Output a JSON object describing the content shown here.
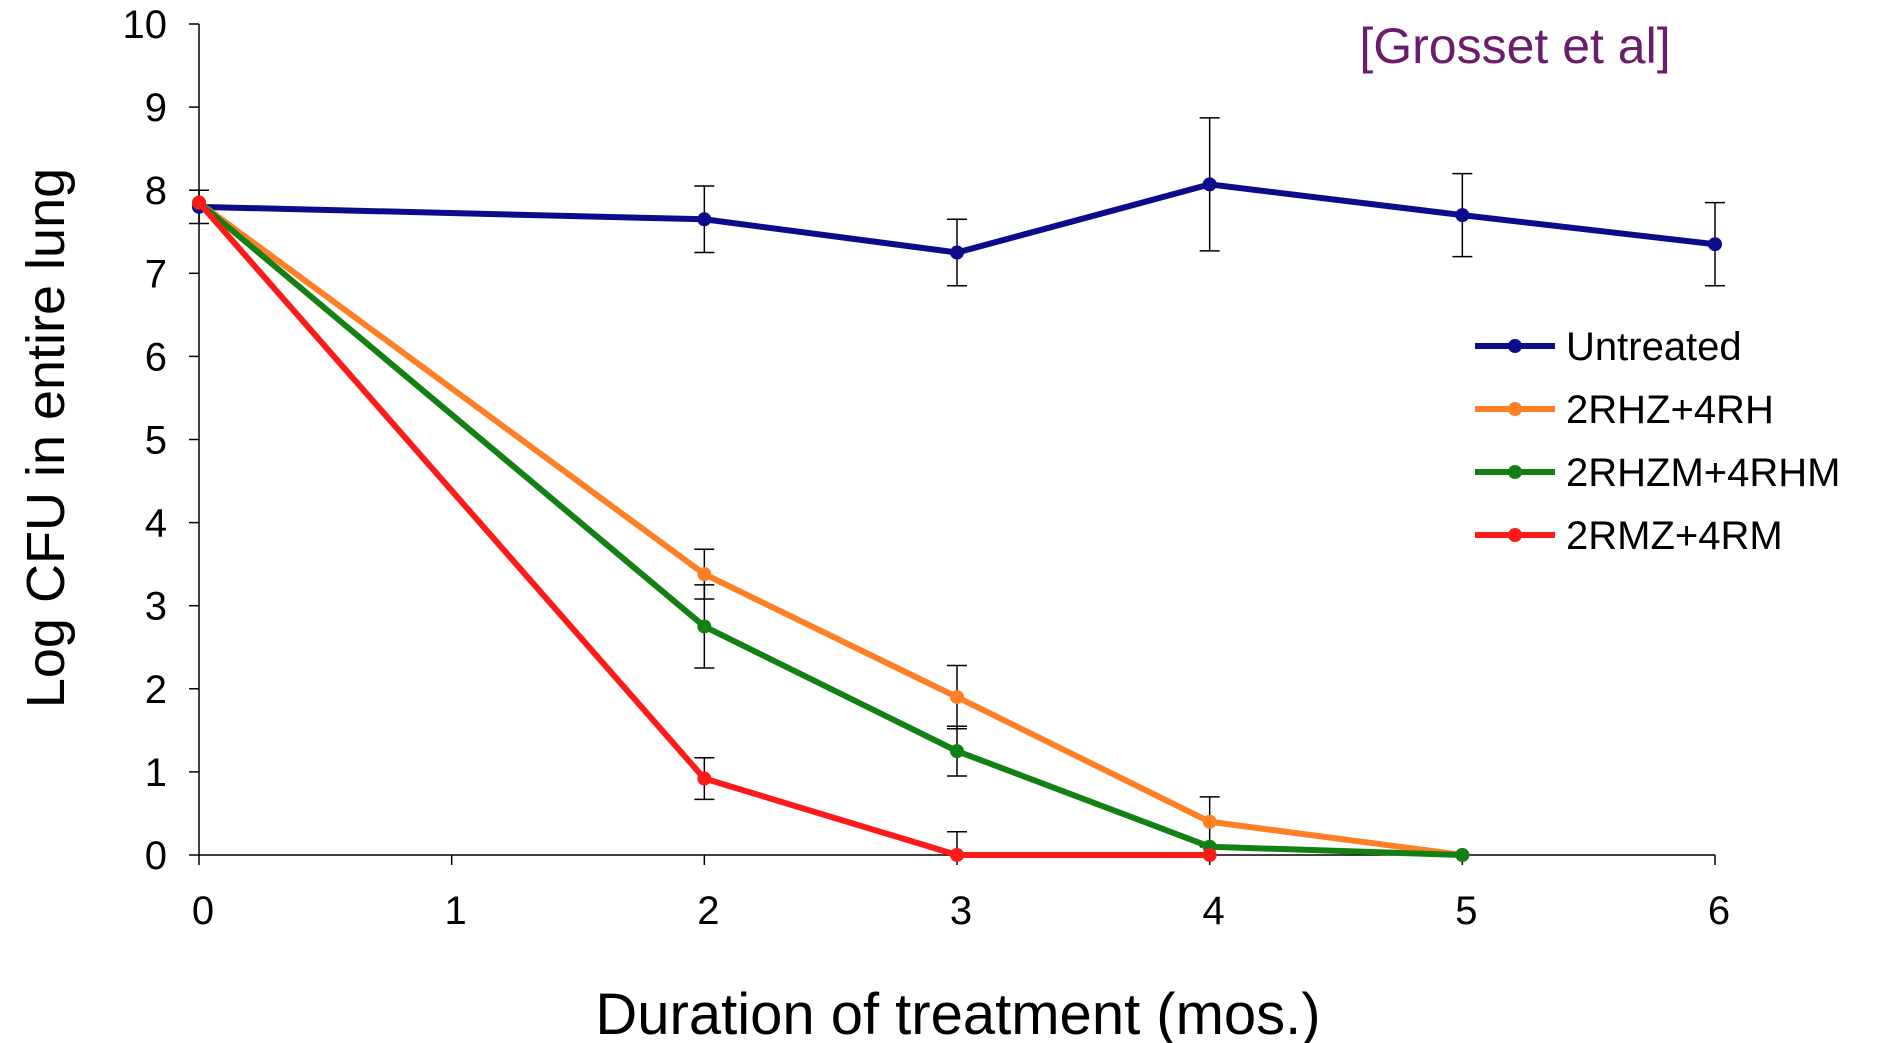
{
  "chart_data": {
    "type": "line",
    "xlabel": "Duration of treatment (mos.)",
    "ylabel": "Log CFU in entire lung",
    "xlim": [
      0,
      6
    ],
    "ylim": [
      0,
      10
    ],
    "x_ticks": [
      0,
      1,
      2,
      3,
      4,
      5,
      6
    ],
    "y_ticks": [
      0,
      1,
      2,
      3,
      4,
      5,
      6,
      7,
      8,
      9,
      10
    ],
    "grid": false,
    "legend_position": "right",
    "annotation": "[Grosset et al]",
    "annotation_color": "#6B1D6B",
    "series": [
      {
        "name": "Untreated",
        "color": "#0B0B8C",
        "points": [
          {
            "x": 0,
            "y": 7.8,
            "err": 0.2
          },
          {
            "x": 2,
            "y": 7.65,
            "err": 0.4
          },
          {
            "x": 3,
            "y": 7.25,
            "err": 0.4
          },
          {
            "x": 4,
            "y": 8.07,
            "err": 0.8
          },
          {
            "x": 5,
            "y": 7.7,
            "err": 0.5
          },
          {
            "x": 6,
            "y": 7.35,
            "err": 0.5
          }
        ]
      },
      {
        "name": "2RHZ+4RH",
        "color": "#FF7F27",
        "points": [
          {
            "x": 0,
            "y": 7.85,
            "err": 0
          },
          {
            "x": 2,
            "y": 3.38,
            "err": 0.3
          },
          {
            "x": 3,
            "y": 1.9,
            "err": 0.38
          },
          {
            "x": 4,
            "y": 0.4,
            "err": 0.3
          },
          {
            "x": 5,
            "y": 0,
            "err": 0
          }
        ]
      },
      {
        "name": "2RHZM+4RHM",
        "color": "#138013",
        "points": [
          {
            "x": 0,
            "y": 7.85,
            "err": 0
          },
          {
            "x": 2,
            "y": 2.75,
            "err": 0.5
          },
          {
            "x": 3,
            "y": 1.25,
            "err": 0.3
          },
          {
            "x": 4,
            "y": 0.1,
            "err": 0
          },
          {
            "x": 5,
            "y": 0,
            "err": 0
          }
        ]
      },
      {
        "name": "2RMZ+4RM",
        "color": "#FF1A1A",
        "points": [
          {
            "x": 0,
            "y": 7.85,
            "err": 0
          },
          {
            "x": 2,
            "y": 0.92,
            "err": 0.25
          },
          {
            "x": 3,
            "y": 0,
            "err": 0.28
          },
          {
            "x": 4,
            "y": 0,
            "err": 0
          }
        ]
      }
    ]
  }
}
